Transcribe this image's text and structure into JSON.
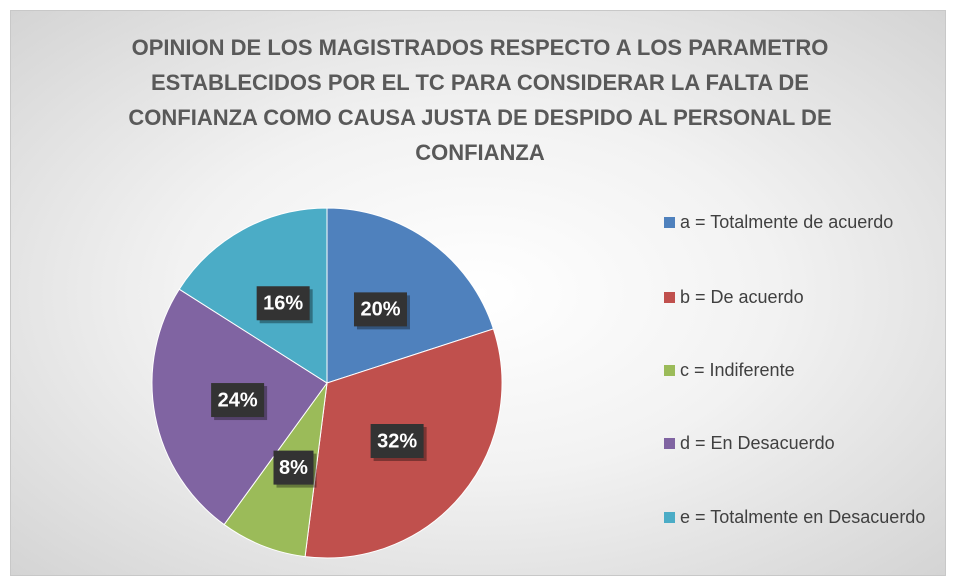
{
  "chart_data": {
    "type": "pie",
    "title": "OPINION DE LOS MAGISTRADOS RESPECTO A LOS PARAMETRO ESTABLECIDOS POR EL TC PARA CONSIDERAR LA FALTA DE CONFIANZA COMO CAUSA JUSTA DE DESPIDO AL PERSONAL DE CONFIANZA",
    "categories": [
      "a = Totalmente de acuerdo",
      "b = De acuerdo",
      "c = Indiferente",
      "d = En Desacuerdo",
      "e = Totalmente en Desacuerdo"
    ],
    "values": [
      20,
      32,
      8,
      24,
      16
    ],
    "value_labels": [
      "20%",
      "32%",
      "8%",
      "24%",
      "16%"
    ],
    "colors": [
      "#4f81bd",
      "#c0504d",
      "#9bbb59",
      "#8064a2",
      "#4bacc6"
    ],
    "legend": "right"
  }
}
